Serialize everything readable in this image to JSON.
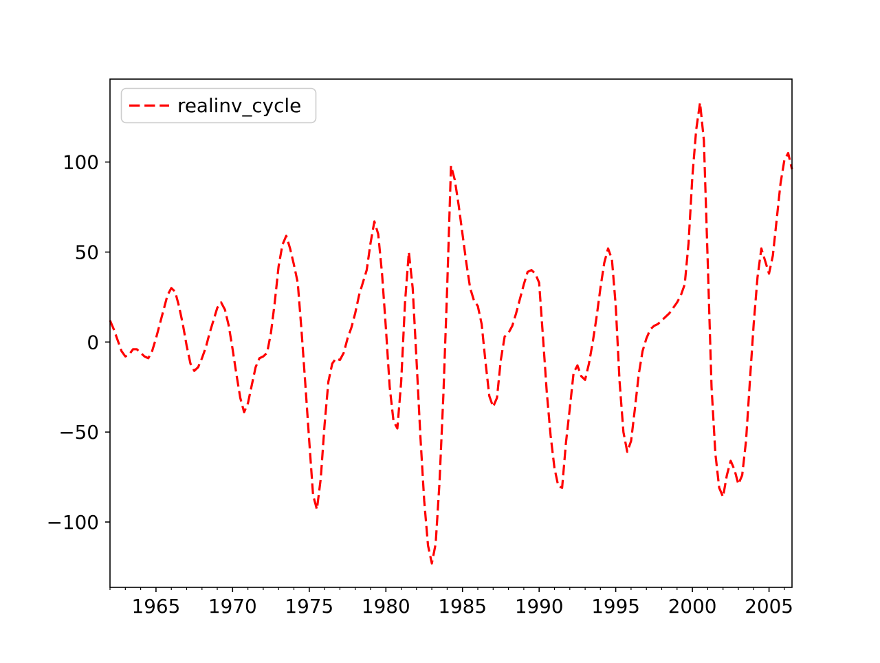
{
  "figure": {
    "background": "#ffffff",
    "legend": {
      "label": "realinv_cycle",
      "edge_color": "#cccccc",
      "line_color": "#ff0000",
      "position": "upper left"
    }
  },
  "chart_data": {
    "type": "line",
    "title": "",
    "xlabel": "",
    "ylabel": "",
    "grid": false,
    "legend_position": "upper left",
    "xlim": [
      1962.0,
      2006.5
    ],
    "ylim": [
      -136.3,
      146.1
    ],
    "x_major_ticks": [
      1965,
      1970,
      1975,
      1980,
      1985,
      1990,
      1995,
      2000,
      2005
    ],
    "x_tick_labels": [
      "1965",
      "1970",
      "1975",
      "1980",
      "1985",
      "1990",
      "1995",
      "2000",
      "2005"
    ],
    "x_minor_tick_years": [
      1962,
      1963,
      1964,
      1966,
      1967,
      1968,
      1969,
      1971,
      1972,
      1973,
      1974,
      1976,
      1977,
      1978,
      1979,
      1981,
      1982,
      1983,
      1984,
      1986,
      1987,
      1988,
      1989,
      1991,
      1992,
      1993,
      1994,
      1996,
      1997,
      1998,
      1999,
      2001,
      2002,
      2003,
      2004,
      2006
    ],
    "y_ticks": [
      100,
      50,
      0,
      -50,
      -100
    ],
    "y_tick_labels": [
      "100",
      "50",
      "0",
      "−50",
      "−100"
    ],
    "series": [
      {
        "name": "realinv_cycle",
        "color": "#ff0000",
        "linestyle": "dashed",
        "x_start": "1962Q1",
        "x_end": "2006Q3",
        "frequency": "quarterly",
        "values": [
          12,
          7,
          1,
          -5,
          -8,
          -7,
          -4,
          -4,
          -6,
          -8,
          -9,
          -5,
          2,
          10,
          18,
          26,
          30,
          28,
          20,
          10,
          -2,
          -12,
          -16,
          -14,
          -9,
          -3,
          5,
          12,
          19,
          22,
          18,
          9,
          -4,
          -18,
          -31,
          -39,
          -34,
          -24,
          -14,
          -9,
          -8,
          -6,
          5,
          22,
          42,
          54,
          59,
          52,
          43,
          33,
          6,
          -24,
          -55,
          -85,
          -93,
          -76,
          -46,
          -22,
          -12,
          -9,
          -10,
          -6,
          2,
          8,
          16,
          26,
          33,
          40,
          55,
          67,
          60,
          38,
          8,
          -25,
          -44,
          -48,
          -22,
          22,
          50,
          30,
          -10,
          -52,
          -88,
          -113,
          -123,
          -112,
          -78,
          -30,
          30,
          98,
          90,
          76,
          60,
          44,
          30,
          23,
          20,
          10,
          -11,
          -30,
          -36,
          -31,
          -10,
          3,
          5,
          9,
          16,
          24,
          32,
          39,
          40,
          38,
          33,
          3,
          -28,
          -52,
          -70,
          -80,
          -81,
          -56,
          -37,
          -17,
          -13,
          -19,
          -21,
          -12,
          0,
          14,
          30,
          44,
          52,
          46,
          20,
          -22,
          -50,
          -61,
          -55,
          -37,
          -18,
          -5,
          2,
          7,
          9,
          10,
          12,
          14,
          16,
          19,
          22,
          26,
          32,
          55,
          92,
          118,
          133,
          112,
          45,
          -25,
          -62,
          -81,
          -86,
          -74,
          -66,
          -71,
          -79,
          -74,
          -55,
          -22,
          10,
          36,
          52,
          45,
          38,
          48,
          68,
          88,
          101,
          105,
          96
        ]
      }
    ]
  }
}
